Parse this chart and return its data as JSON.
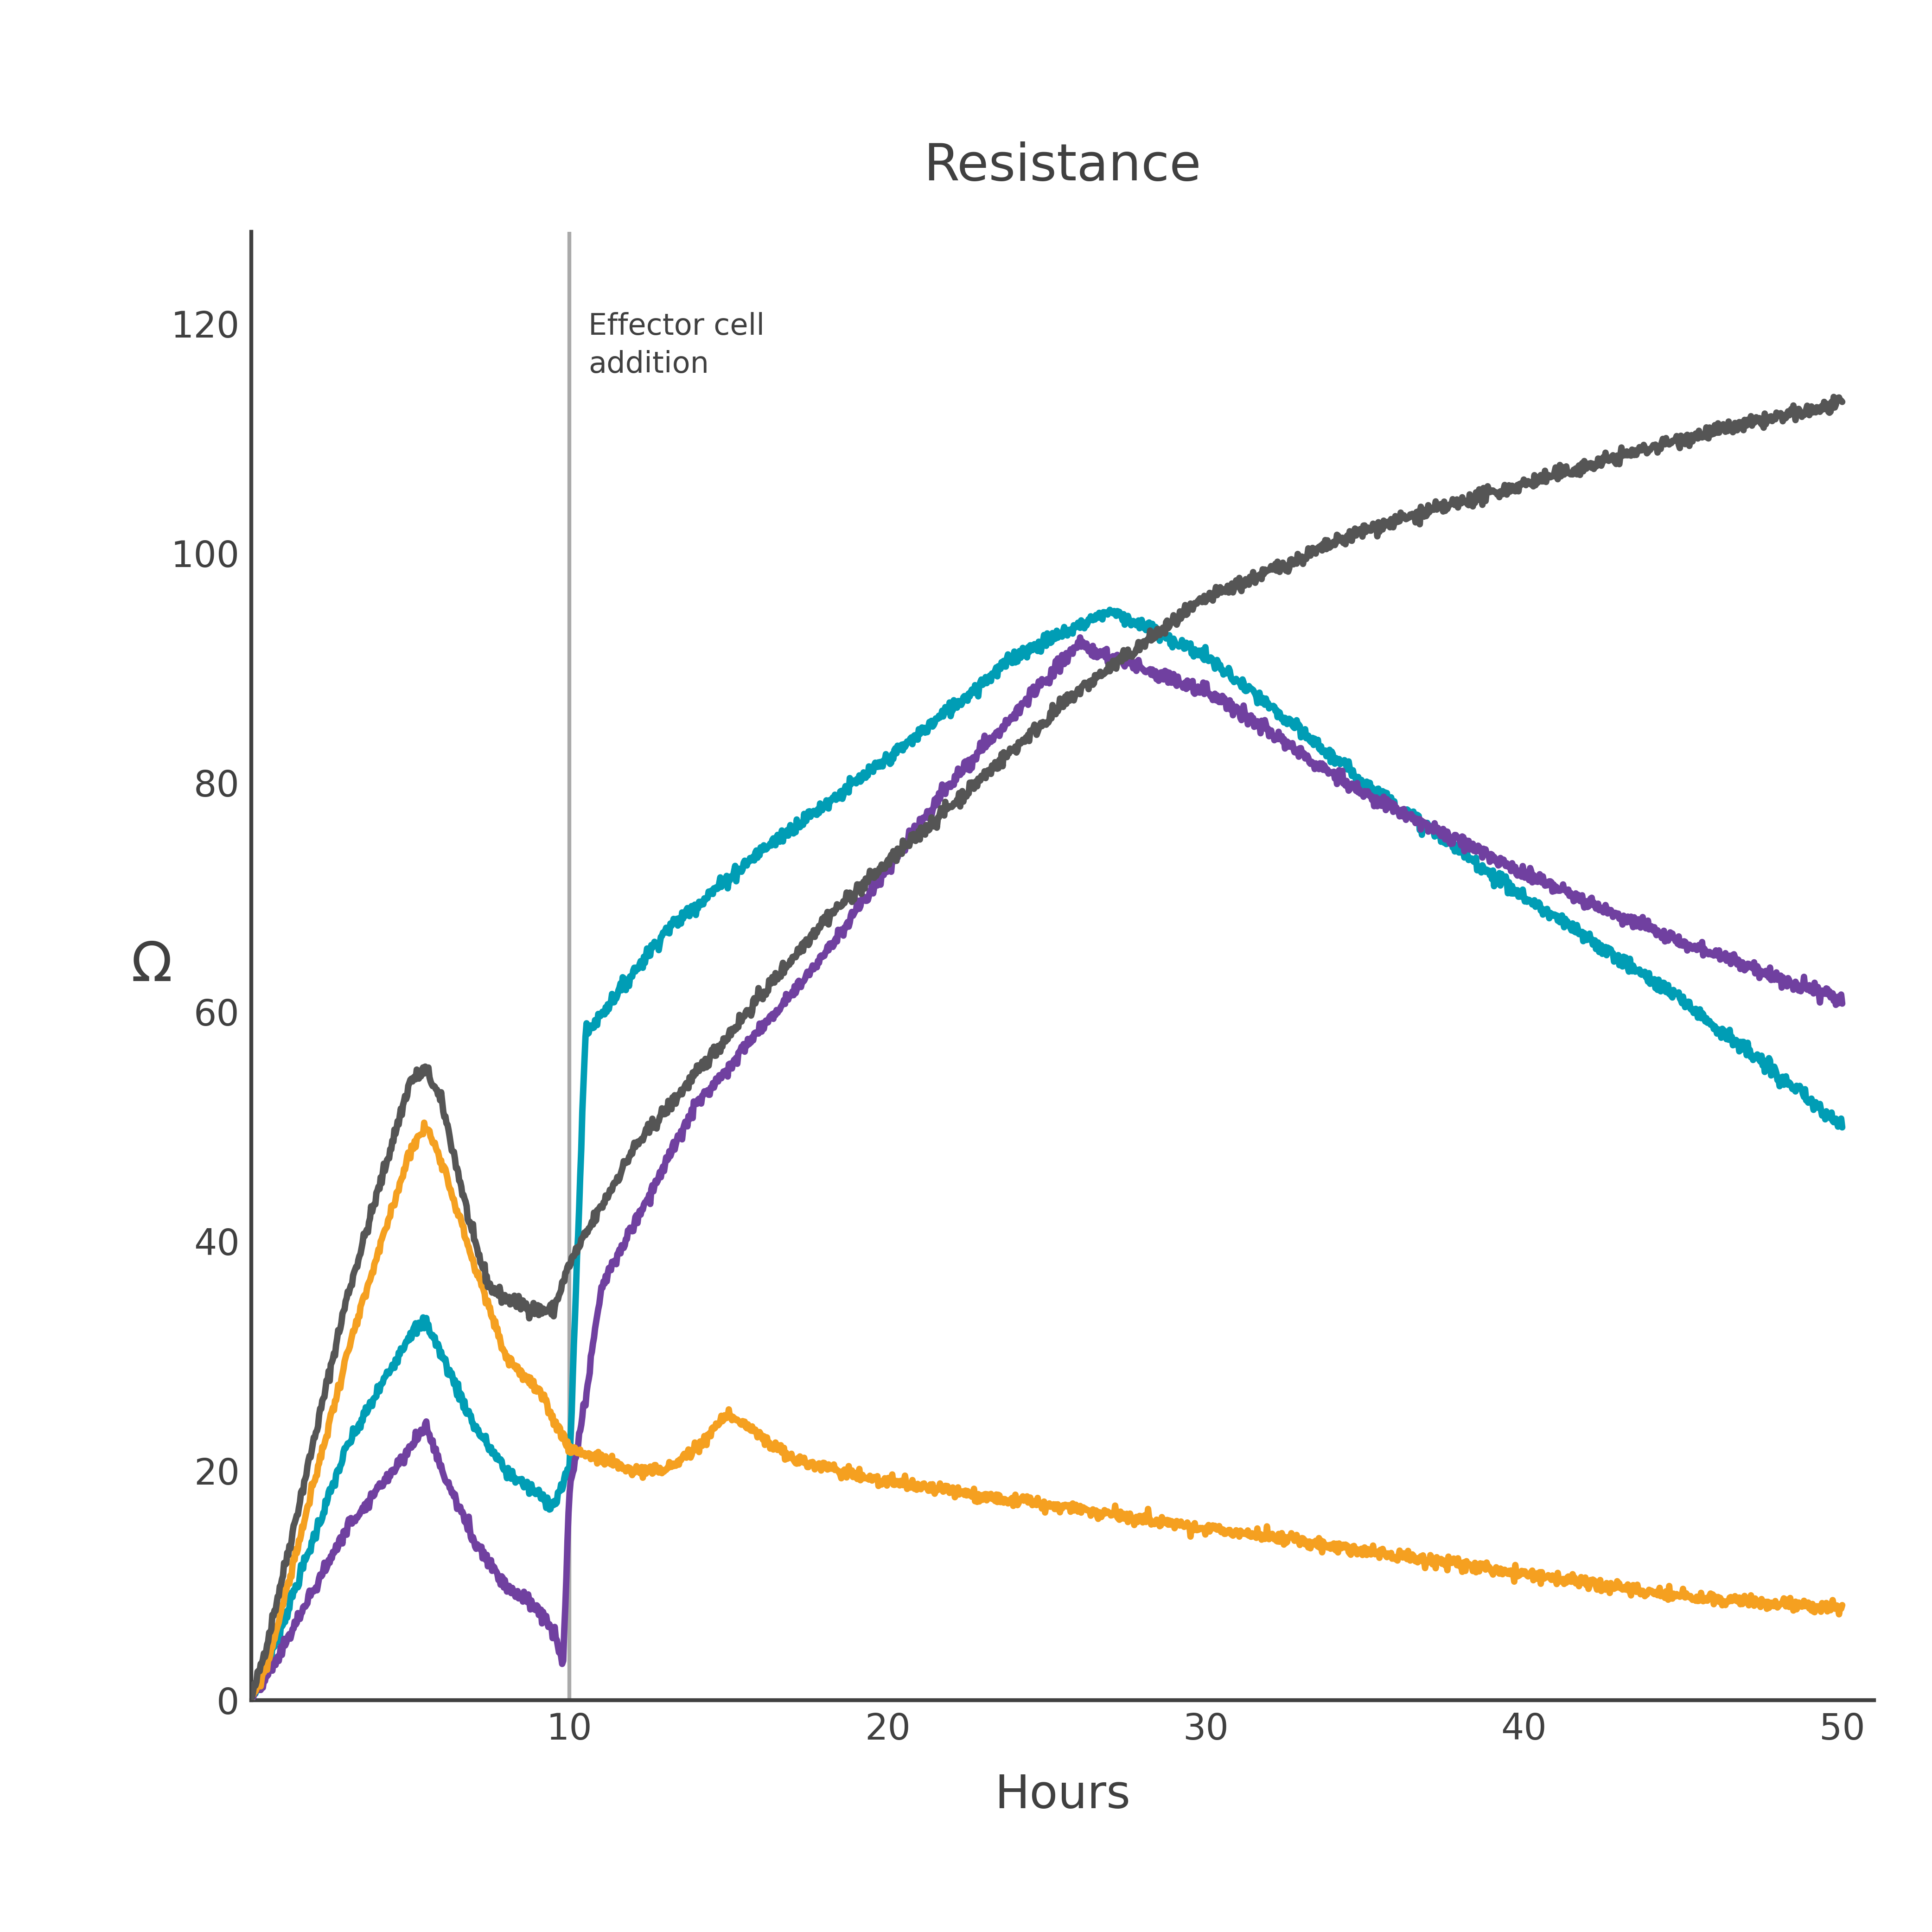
{
  "title": "Resistance",
  "xlabel": "Hours",
  "ylabel": "Ω",
  "xlim": [
    0,
    51
  ],
  "ylim": [
    0,
    128
  ],
  "yticks": [
    0,
    20,
    40,
    60,
    80,
    100,
    120
  ],
  "xticks": [
    10,
    20,
    30,
    40,
    50
  ],
  "vline_x": 10,
  "vline_label": "Effector cell\naddition",
  "background_color": "#ffffff",
  "title_color": "#404040",
  "axis_color": "#404040",
  "tick_color": "#404040",
  "vline_color": "#aaaaaa",
  "gray_color": "#555555",
  "teal_color": "#009db5",
  "purple_color": "#7040a0",
  "orange_color": "#f5a020",
  "title_fontsize": 80,
  "label_fontsize": 72,
  "tick_fontsize": 56,
  "annotation_fontsize": 46,
  "lw": 10
}
